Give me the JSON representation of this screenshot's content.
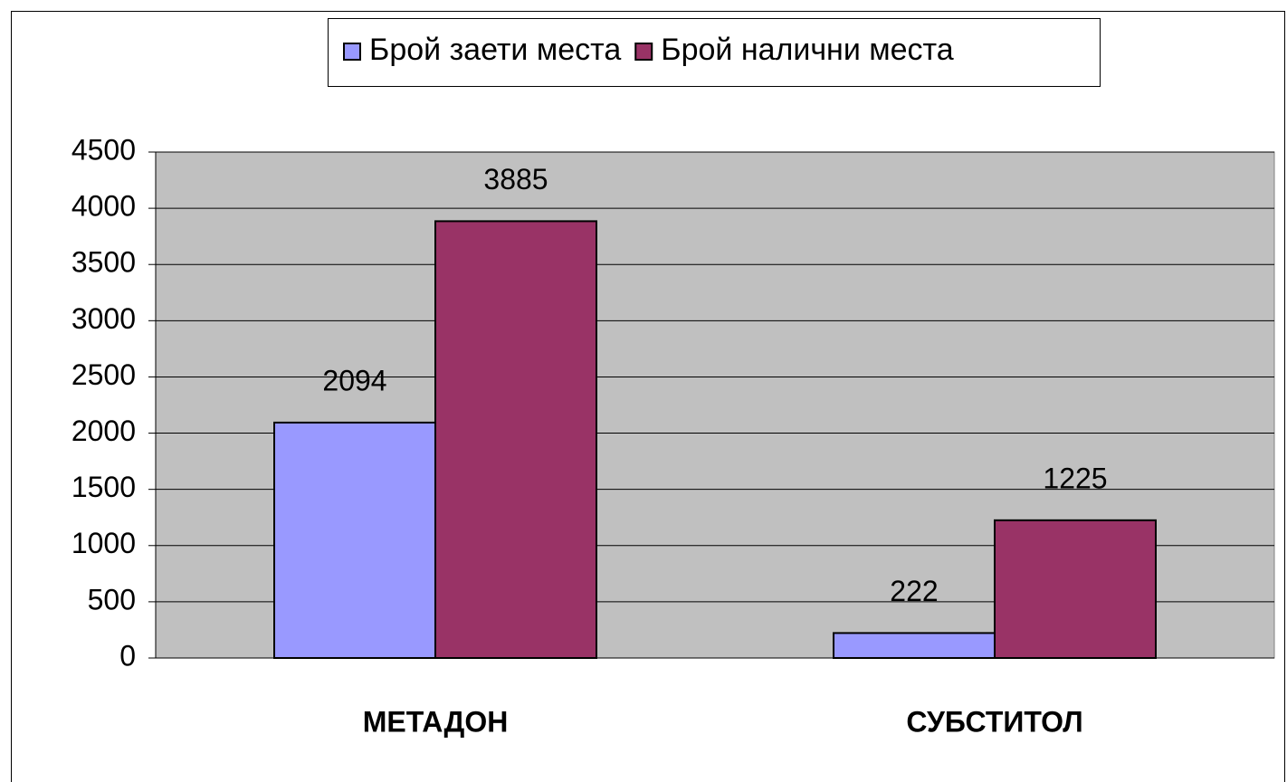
{
  "chart_data": {
    "type": "bar",
    "categories": [
      "МЕТАДОН",
      "СУБСТИТОЛ"
    ],
    "series": [
      {
        "name": "Брой заети места",
        "color": "#9999ff",
        "values": [
          2094,
          222
        ]
      },
      {
        "name": "Брой налични места",
        "color": "#993366",
        "values": [
          3885,
          1225
        ]
      }
    ],
    "ylim": [
      0,
      4500
    ],
    "yticks": [
      0,
      500,
      1000,
      1500,
      2000,
      2500,
      3000,
      3500,
      4000,
      4500
    ],
    "grid": true,
    "legend": "top"
  }
}
